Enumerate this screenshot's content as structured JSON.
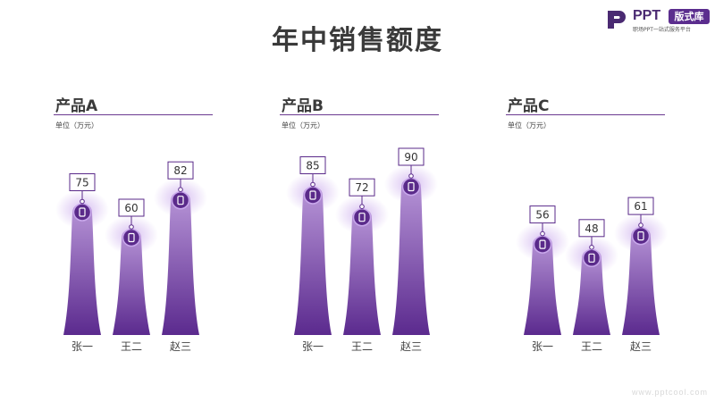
{
  "title": "年中销售额度",
  "logo": {
    "name": "PPT",
    "badge": "版式库",
    "tagline": "职场PPT一站式服务平台"
  },
  "watermark": "www.pptcool.com",
  "colors": {
    "bar_top": "#b896d8",
    "bar_bottom": "#5b2a8e",
    "marker": "#5a2a8a",
    "accent": "#6b3a90",
    "label_border": "#5a2a8a"
  },
  "icon": "phone-icon",
  "chart_data": [
    {
      "type": "bar",
      "title": "产品A",
      "unit": "单位（万元）",
      "categories": [
        "张一",
        "王二",
        "赵三"
      ],
      "values": [
        75,
        60,
        82
      ]
    },
    {
      "type": "bar",
      "title": "产品B",
      "unit": "单位（万元）",
      "categories": [
        "张一",
        "王二",
        "赵三"
      ],
      "values": [
        85,
        72,
        90
      ]
    },
    {
      "type": "bar",
      "title": "产品C",
      "unit": "单位（万元）",
      "categories": [
        "张一",
        "王二",
        "赵三"
      ],
      "values": [
        56,
        48,
        61
      ]
    }
  ]
}
